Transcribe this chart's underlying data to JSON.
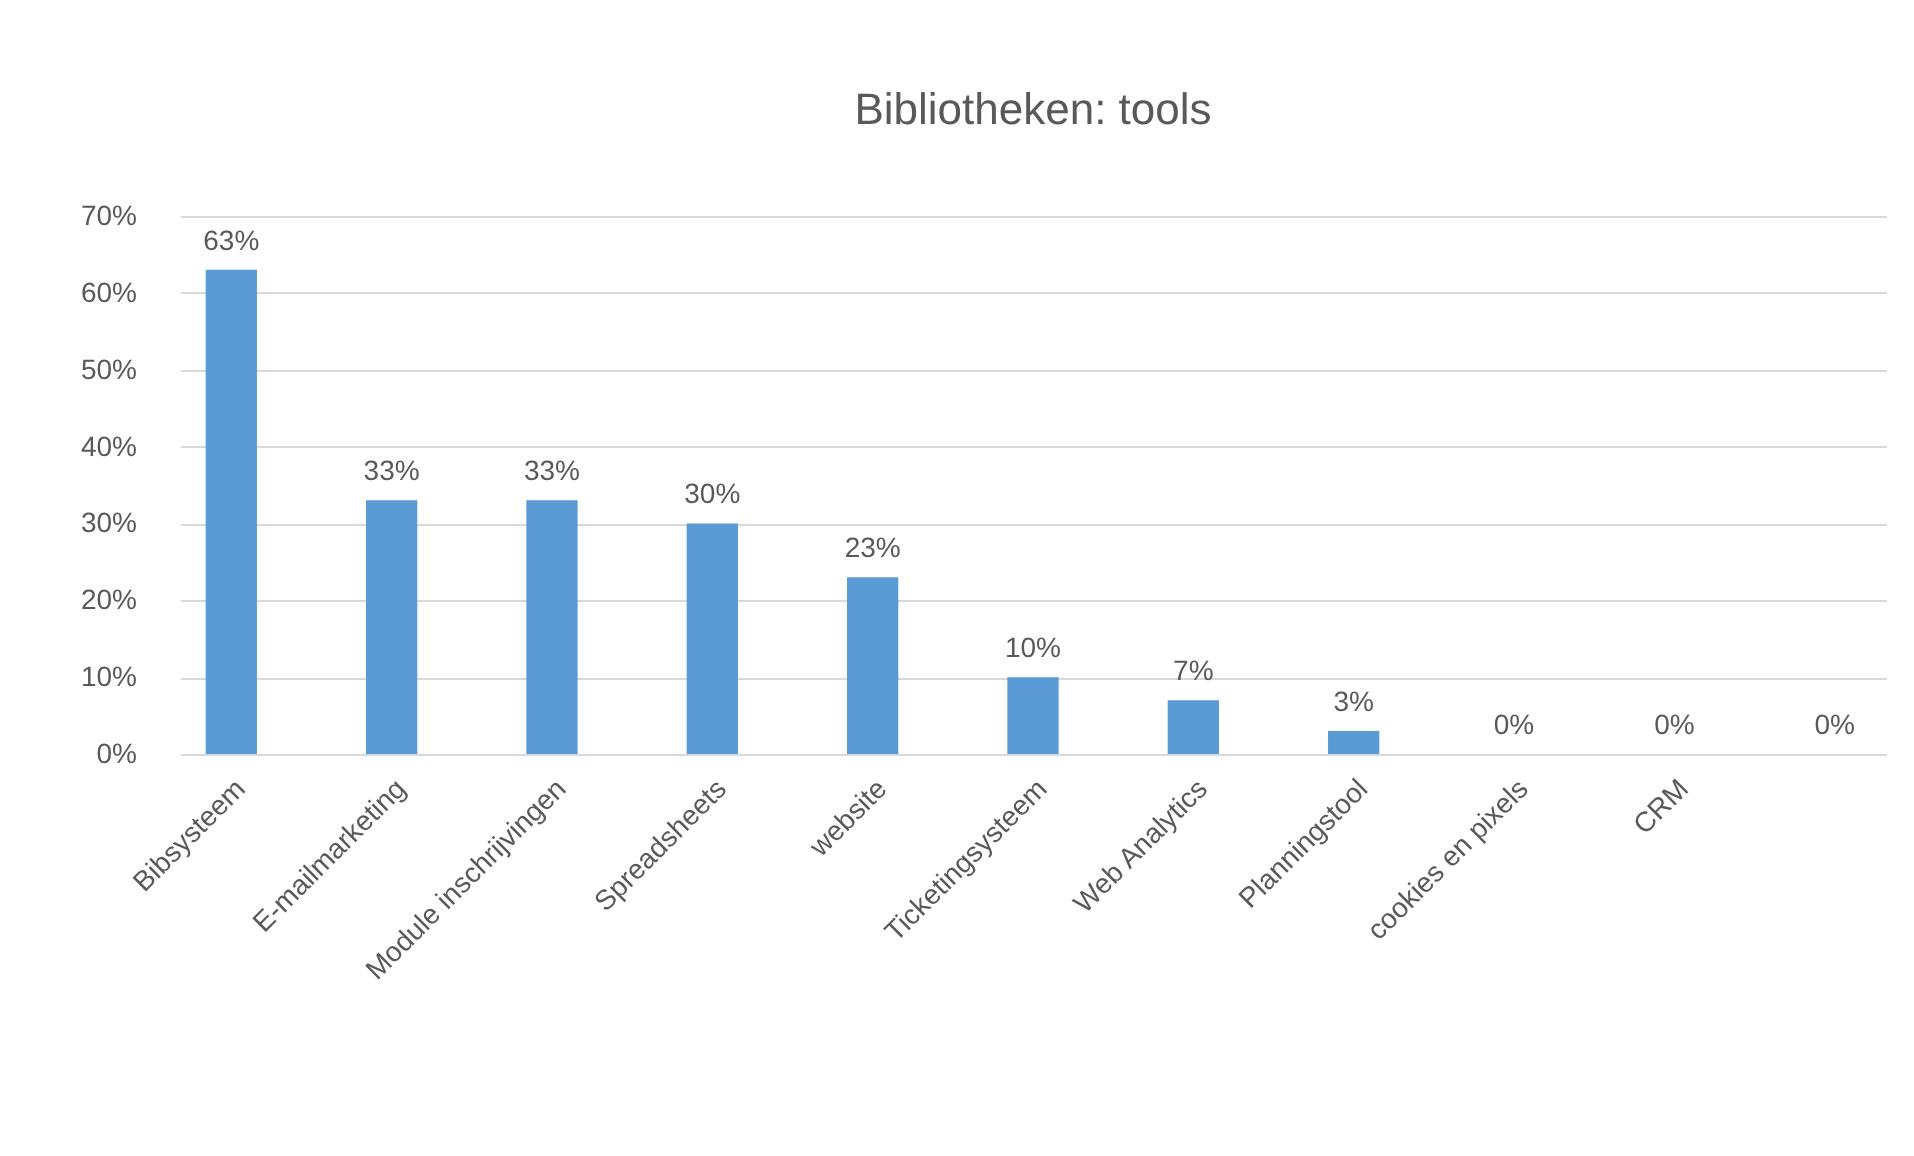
{
  "chart_data": {
    "type": "bar",
    "title": "Bibliotheken: tools",
    "categories": [
      "Bibsysteem",
      "E-mailmarketing",
      "Module inschrijvingen",
      "Spreadsheets",
      "website",
      "Ticketingsysteem",
      "Web Analytics",
      "Planningstool",
      "cookies en pixels",
      "CRM",
      null
    ],
    "values": [
      63,
      33,
      33,
      30,
      23,
      10,
      7,
      3,
      0,
      0,
      0
    ],
    "value_labels": [
      "63%",
      "33%",
      "33%",
      "30%",
      "23%",
      "10%",
      "7%",
      "3%",
      "0%",
      "0%",
      "0%"
    ],
    "color": "#5b9bd5",
    "ylim": [
      0,
      70
    ],
    "yticks": [
      {
        "value": 0,
        "label": "0%"
      },
      {
        "value": 10,
        "label": "10%"
      },
      {
        "value": 20,
        "label": "20%"
      },
      {
        "value": 30,
        "label": "30%"
      },
      {
        "value": 40,
        "label": "40%"
      },
      {
        "value": 50,
        "label": "50%"
      },
      {
        "value": 60,
        "label": "60%"
      },
      {
        "value": 70,
        "label": "70%"
      }
    ],
    "grid": "y"
  }
}
